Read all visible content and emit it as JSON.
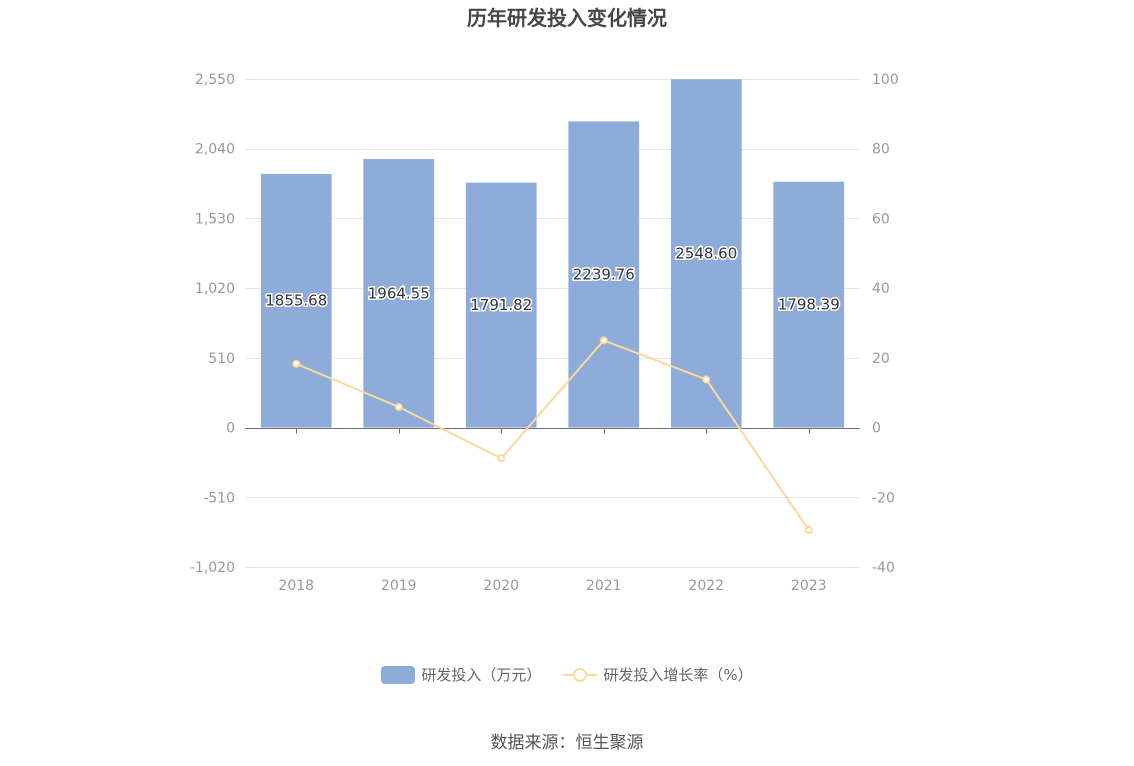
{
  "title": "历年研发投入变化情况",
  "source": "数据来源：恒生聚源",
  "colors": {
    "bar": "#8eacd9",
    "line": "#fad99b",
    "grid": "#e2e6f2",
    "axis": "#6e7079",
    "tick_text": "#999999",
    "label_text": "#333333"
  },
  "legend": {
    "bar_label": "研发投入（万元）",
    "line_label": "研发投入增长率（%）"
  },
  "chart_data": {
    "type": "bar",
    "categories": [
      "2018",
      "2019",
      "2020",
      "2021",
      "2022",
      "2023"
    ],
    "series": [
      {
        "name": "研发投入（万元）",
        "type": "bar",
        "axis": "left",
        "values": [
          1855.68,
          1964.55,
          1791.82,
          2239.76,
          2548.6,
          1798.39
        ],
        "labels": [
          "1855.68",
          "1964.55",
          "1791.82",
          "2239.76",
          "2548.60",
          "1798.39"
        ]
      },
      {
        "name": "研发投入增长率（%）",
        "type": "line",
        "axis": "right",
        "values": [
          18.3,
          5.9,
          -8.8,
          25.0,
          13.8,
          -29.4
        ]
      }
    ],
    "y_left": {
      "ylim": [
        -1020,
        2550
      ],
      "ticks": [
        2550,
        2040,
        1530,
        1020,
        510,
        0,
        -510,
        -1020
      ],
      "tick_labels": [
        "2,550",
        "2,040",
        "1,530",
        "1,020",
        "510",
        "0",
        "-510",
        "-1,020"
      ]
    },
    "y_right": {
      "ylim": [
        -40,
        100
      ],
      "ticks": [
        100,
        80,
        60,
        40,
        20,
        0,
        -20,
        -40
      ],
      "tick_labels": [
        "100",
        "80",
        "60",
        "40",
        "20",
        "0",
        "-20",
        "-40"
      ]
    },
    "grid": true,
    "legend_position": "bottom-center"
  }
}
